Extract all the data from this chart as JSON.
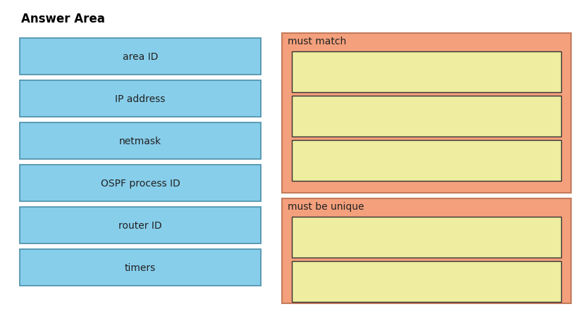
{
  "title": "Answer Area",
  "title_fontsize": 12,
  "title_fontweight": "bold",
  "left_items": [
    "area ID",
    "IP address",
    "netmask",
    "OSPF process ID",
    "router ID",
    "timers"
  ],
  "left_box_color": "#87CEEB",
  "left_box_edgecolor": "#4a8fa8",
  "right_sections": [
    {
      "label": "must match",
      "num_slots": 3,
      "bg_color": "#F4A07C",
      "slot_color": "#EEEDA0",
      "slot_edgecolor": "#333333"
    },
    {
      "label": "must be unique",
      "num_slots": 2,
      "bg_color": "#F4A07C",
      "slot_color": "#EEEDA0",
      "slot_edgecolor": "#333333"
    }
  ],
  "bg_color": "#ffffff",
  "fig_width": 8.27,
  "fig_height": 4.6,
  "dpi": 100
}
